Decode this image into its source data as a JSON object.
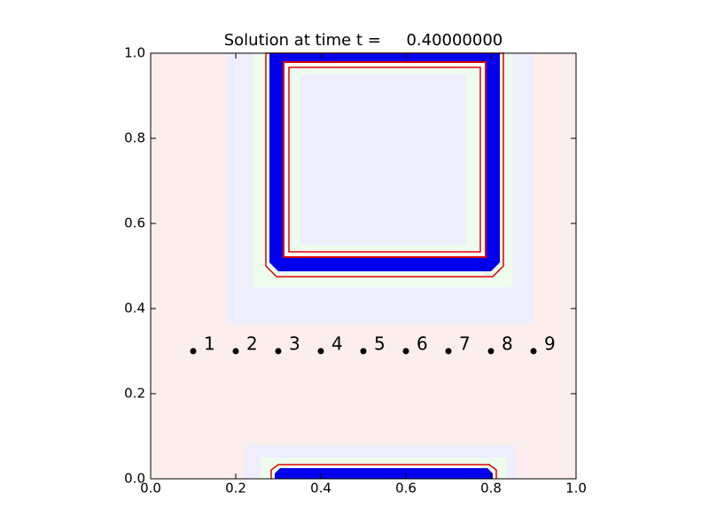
{
  "chart_data": {
    "type": "scatter",
    "title": "Solution at time t =     0.40000000",
    "x": [
      0.1,
      0.2,
      0.3,
      0.4,
      0.5,
      0.6,
      0.7,
      0.8,
      0.9
    ],
    "values": [
      0.3,
      0.3,
      0.3,
      0.3,
      0.3,
      0.3,
      0.3,
      0.3,
      0.3
    ],
    "point_labels": [
      "1",
      "2",
      "3",
      "4",
      "5",
      "6",
      "7",
      "8",
      "9"
    ],
    "color": "#000000",
    "xlim": [
      0,
      1
    ],
    "ylim": [
      0,
      1
    ],
    "xticks": [
      {
        "value": 0,
        "label": "0.0"
      },
      0.2,
      0.4,
      0.6,
      0.8,
      {
        "value": 1,
        "label": "1.0"
      }
    ],
    "yticks": [
      {
        "value": 0,
        "label": "0.0"
      },
      0.2,
      0.4,
      0.6,
      0.8,
      {
        "value": 1,
        "label": "1.0"
      }
    ]
  }
}
